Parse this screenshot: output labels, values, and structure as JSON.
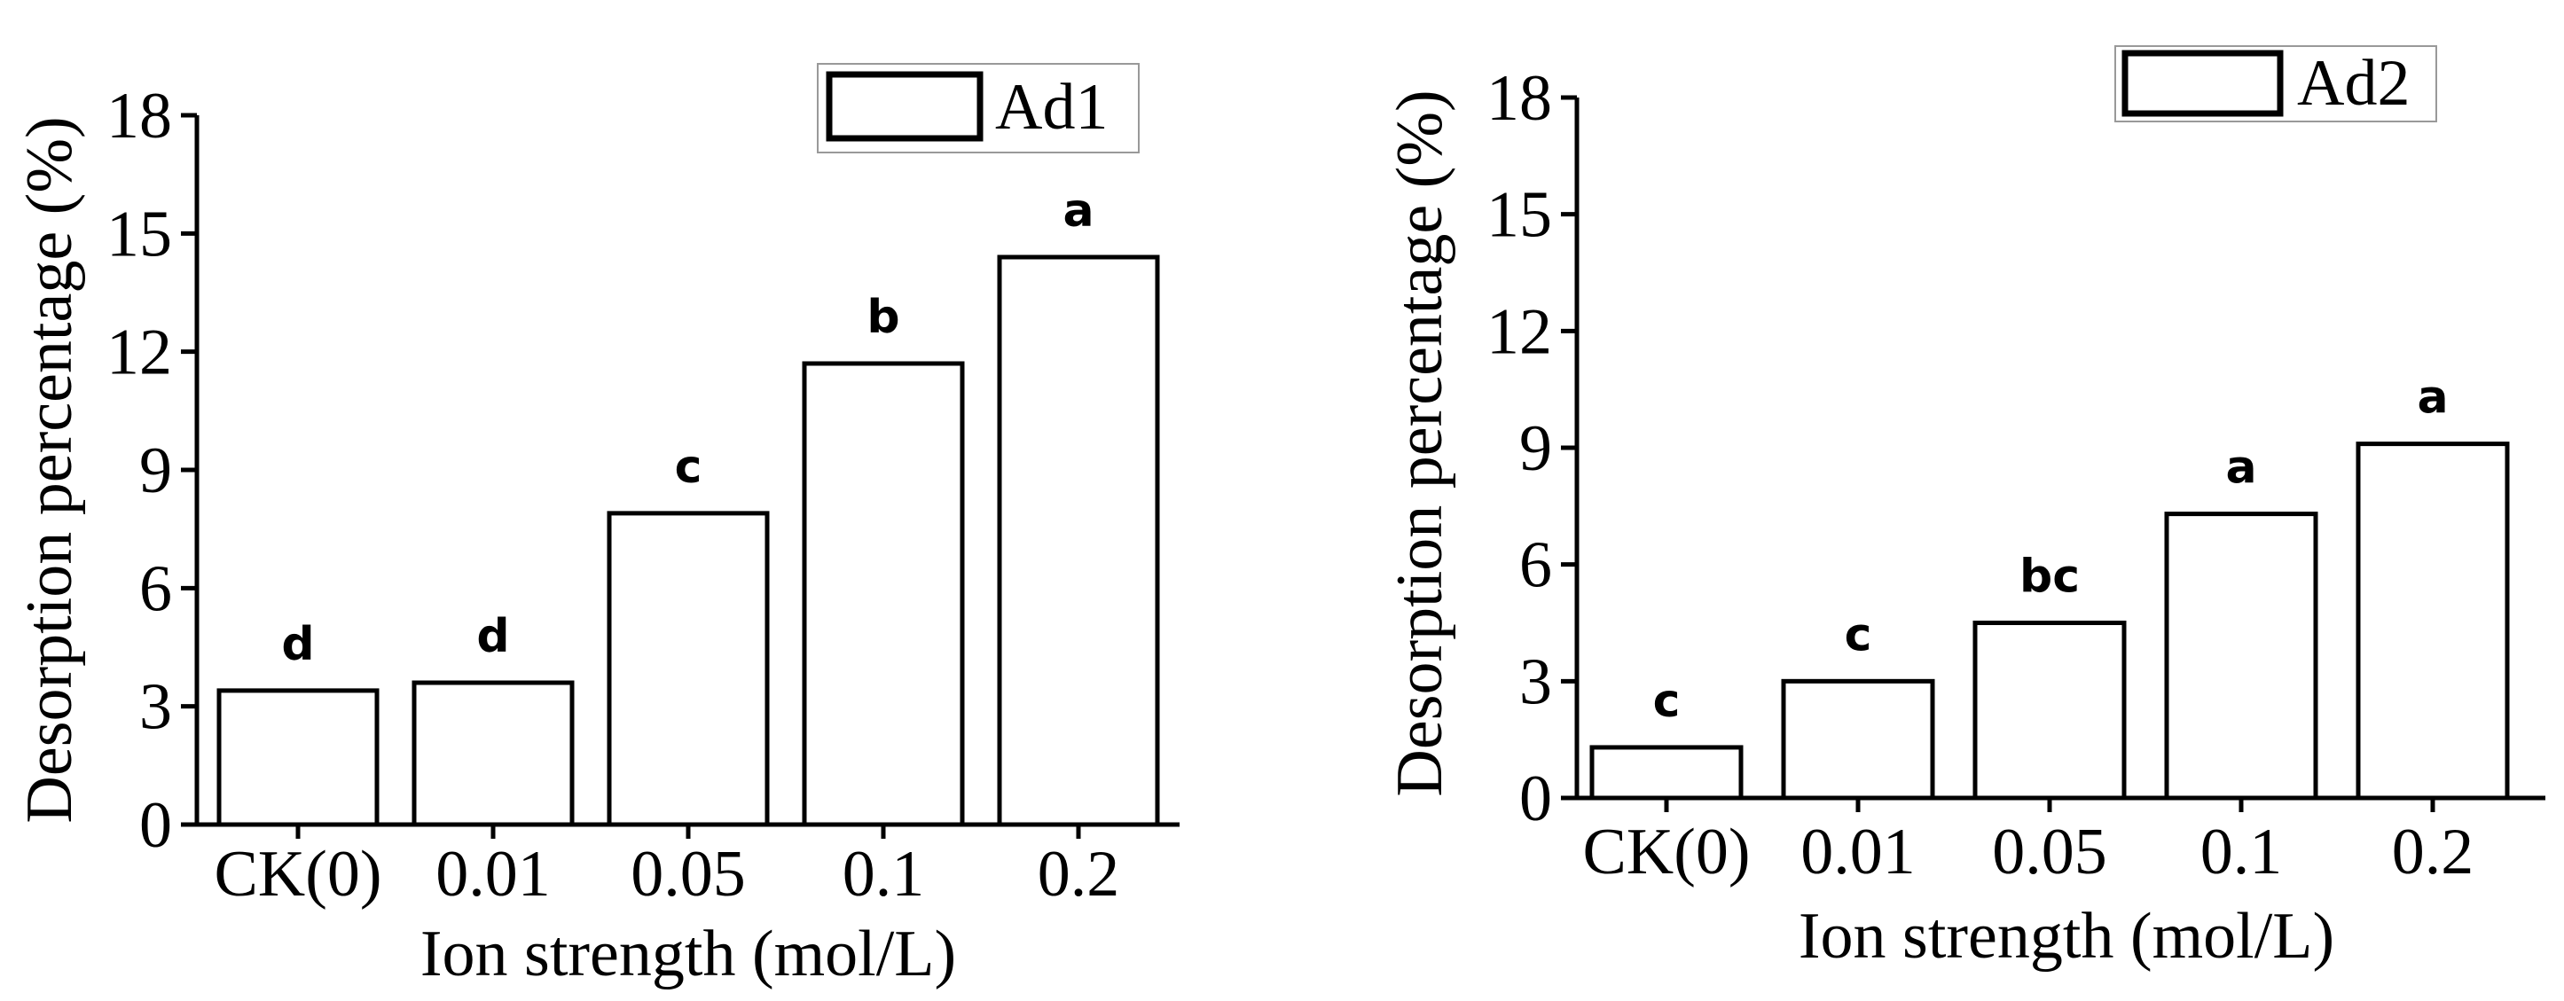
{
  "chart_data": [
    {
      "type": "bar",
      "categories": [
        "CK(0)",
        "0.01",
        "0.05",
        "0.1",
        "0.2"
      ],
      "series": [
        {
          "name": "Ad1",
          "values": [
            3.4,
            3.6,
            7.9,
            11.7,
            14.4
          ]
        }
      ],
      "annotations": [
        "d",
        "d",
        "c",
        "b",
        "a"
      ],
      "xlabel": "Ion strength (mol/L)",
      "ylabel": "Desorption percentage (%)",
      "ylim": [
        0,
        18
      ],
      "yticks": [
        "0",
        "3",
        "6",
        "9",
        "12",
        "15",
        "18"
      ],
      "legend_position": "top-right",
      "grid": false,
      "bar_fill": "#ffffff",
      "bar_stroke": "#000000"
    },
    {
      "type": "bar",
      "categories": [
        "CK(0)",
        "0.01",
        "0.05",
        "0.1",
        "0.2"
      ],
      "series": [
        {
          "name": "Ad2",
          "values": [
            1.3,
            3.0,
            4.5,
            7.3,
            9.1
          ]
        }
      ],
      "annotations": [
        "c",
        "c",
        "bc",
        "a",
        "a"
      ],
      "xlabel": "Ion strength (mol/L)",
      "ylabel": "Desorption percentage (%)",
      "ylim": [
        0,
        18
      ],
      "yticks": [
        "0",
        "3",
        "6",
        "9",
        "12",
        "15",
        "18"
      ],
      "legend_position": "top-right",
      "grid": false,
      "bar_fill": "#ffffff",
      "bar_stroke": "#000000"
    }
  ]
}
